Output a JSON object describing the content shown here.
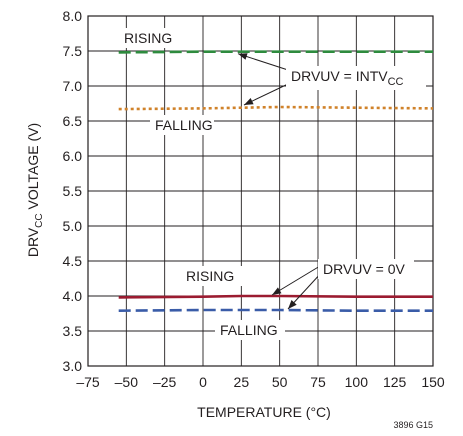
{
  "chart_data": {
    "type": "line",
    "xlabel": "TEMPERATURE (°C)",
    "ylabel_main": "DRV",
    "ylabel_sub": "CC",
    "ylabel_rest": " VOLTAGE (V)",
    "xlim": [
      -75,
      150
    ],
    "ylim": [
      3.0,
      8.0
    ],
    "x_ticks": [
      -75,
      -50,
      -25,
      0,
      25,
      50,
      75,
      100,
      125,
      150
    ],
    "y_ticks": [
      3.0,
      3.5,
      4.0,
      4.5,
      5.0,
      5.5,
      6.0,
      6.5,
      7.0,
      7.5,
      8.0
    ],
    "x_tick_labels": [
      "–75",
      "–50",
      "–25",
      "0",
      "25",
      "50",
      "75",
      "100",
      "125",
      "150"
    ],
    "y_tick_labels": [
      "3.0",
      "3.5",
      "4.0",
      "4.5",
      "5.0",
      "5.5",
      "6.0",
      "6.5",
      "7.0",
      "7.5",
      "8.0"
    ],
    "grid": true,
    "series": [
      {
        "color": "#2e8b3e",
        "dash": "long",
        "x": [
          -55,
          0,
          25,
          50,
          100,
          150
        ],
        "y": [
          7.48,
          7.49,
          7.49,
          7.49,
          7.49,
          7.49
        ]
      },
      {
        "color": "#d0822a",
        "dash": "dot",
        "x": [
          -55,
          0,
          25,
          50,
          100,
          150
        ],
        "y": [
          6.67,
          6.68,
          6.69,
          6.7,
          6.69,
          6.68
        ]
      },
      {
        "color": "#9b1b30",
        "dash": "solid",
        "x": [
          -55,
          0,
          25,
          50,
          100,
          150
        ],
        "y": [
          3.98,
          3.99,
          4.0,
          4.0,
          3.99,
          3.99
        ]
      },
      {
        "color": "#3a5ca8",
        "dash": "long",
        "x": [
          -55,
          0,
          25,
          50,
          100,
          150
        ],
        "y": [
          3.79,
          3.8,
          3.8,
          3.8,
          3.79,
          3.79
        ]
      }
    ],
    "annotations": {
      "rising_top": "RISING",
      "falling_top": "FALLING",
      "drvuv_top_main": "DRVUV = INTV",
      "drvuv_top_sub": "CC",
      "rising_bottom": "RISING",
      "falling_bottom": "FALLING",
      "drvuv_bottom": "DRVUV = 0V"
    },
    "figure_code": "3896 G15"
  }
}
